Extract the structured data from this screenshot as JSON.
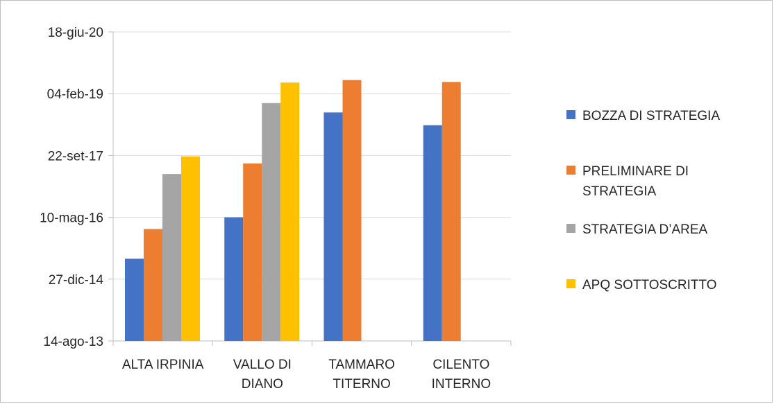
{
  "chart_data": {
    "type": "bar",
    "categories": [
      [
        "ALTA IRPINIA"
      ],
      [
        "VALLO DI",
        "DIANO"
      ],
      [
        "TAMMARO",
        "TITERNO"
      ],
      [
        "CILENTO",
        "INTERNO"
      ]
    ],
    "y_axis": {
      "type": "date",
      "min": "2013-08-14",
      "max": "2020-06-18",
      "ticks": [
        {
          "value": "2013-08-14",
          "label": "14-ago-13"
        },
        {
          "value": "2014-12-27",
          "label": "27-dic-14"
        },
        {
          "value": "2016-05-10",
          "label": "10-mag-16"
        },
        {
          "value": "2017-09-22",
          "label": "22-set-17"
        },
        {
          "value": "2019-02-04",
          "label": "04-feb-19"
        },
        {
          "value": "2020-06-18",
          "label": "18-giu-20"
        }
      ]
    },
    "series": [
      {
        "name": "BOZZA DI STRATEGIA",
        "color": "#4472c4",
        "values": [
          "2015-06-10",
          "2016-05-10",
          "2018-09-05",
          "2018-05-25"
        ]
      },
      {
        "name": "PRELIMINARE DI STRATEGIA",
        "color": "#ed7d31",
        "values": [
          "2016-02-05",
          "2017-07-20",
          "2019-05-26",
          "2019-05-10"
        ]
      },
      {
        "name": "STRATEGIA D'AREA",
        "color": "#a5a5a5",
        "values": [
          "2017-04-25",
          "2018-11-20",
          null,
          null
        ]
      },
      {
        "name": "APQ SOTTOSCRITTO",
        "color": "#ffc000",
        "values": [
          "2017-09-15",
          "2019-05-05",
          null,
          null
        ]
      }
    ],
    "legend": {
      "position": "right",
      "entries": [
        [
          "BOZZA DI STRATEGIA"
        ],
        [
          "PRELIMINARE DI",
          "STRATEGIA"
        ],
        [
          "STRATEGIA D’AREA"
        ],
        [
          "APQ SOTTOSCRITTO"
        ]
      ]
    },
    "grid": true
  }
}
